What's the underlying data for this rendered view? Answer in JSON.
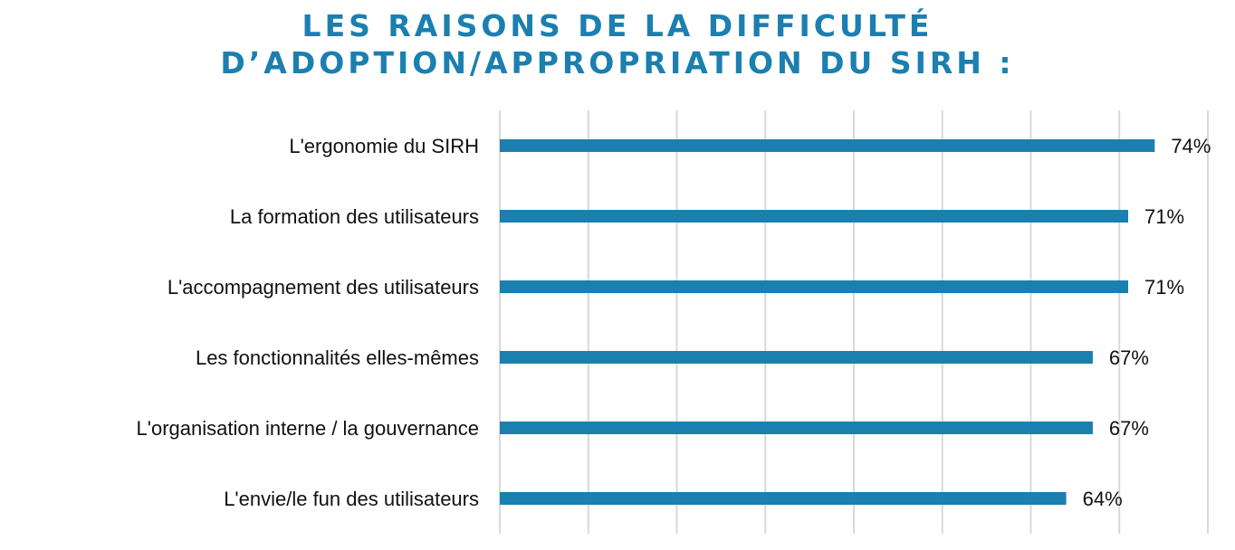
{
  "chart_data": {
    "type": "bar",
    "orientation": "horizontal",
    "title_lines": [
      "LES RAISONS DE LA DIFFICULTÉ",
      "D’ADOPTION/APPROPRIATION DU SIRH :"
    ],
    "categories": [
      "L'ergonomie du SIRH",
      "La formation des utilisateurs",
      "L'accompagnement des utilisateurs",
      "Les fonctionnalités elles-mêmes",
      "L'organisation interne / la gouvernance",
      "L'envie/le fun des utilisateurs"
    ],
    "values": [
      74,
      71,
      71,
      67,
      67,
      64
    ],
    "value_labels": [
      "74%",
      "71%",
      "71%",
      "67%",
      "67%",
      "64%"
    ],
    "unit": "%",
    "axis_value_range": [
      0,
      80
    ],
    "value_gridlines": true,
    "value_gridline_count": 9,
    "legend": "none",
    "colors": {
      "bar": "#1b7fb0",
      "title": "#1b7fb0",
      "grid": "#d9d9d9",
      "text": "#111111"
    }
  }
}
